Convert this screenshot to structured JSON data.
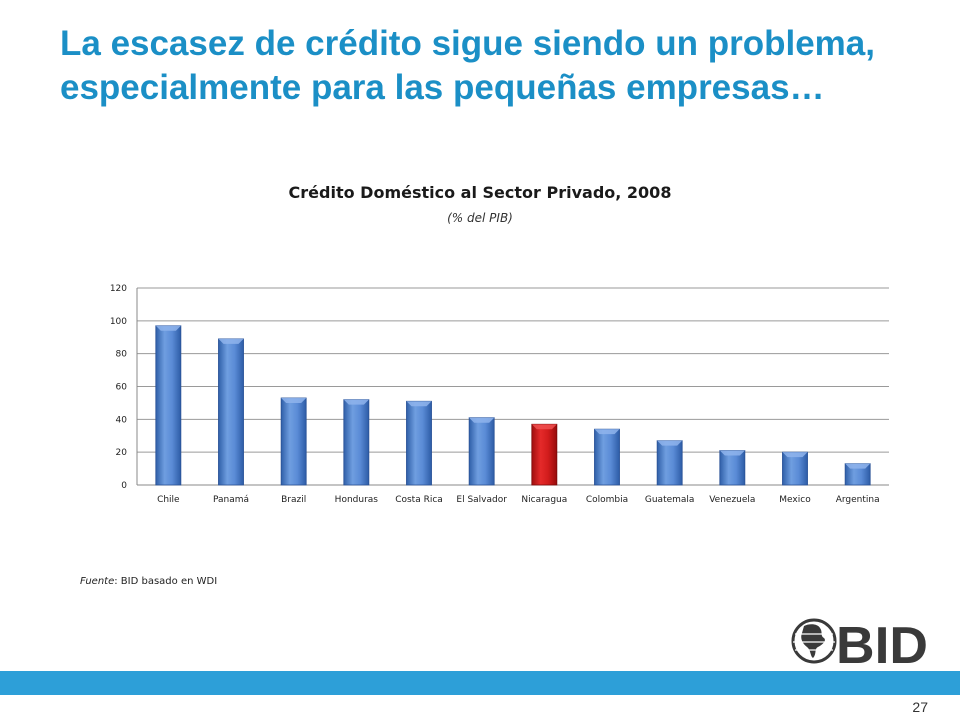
{
  "slide": {
    "title": "La escasez de crédito sigue siendo un problema, especialmente para las pequeñas empresas…",
    "source_label": "Fuente",
    "source_text": ": BID basado en WDI",
    "logo_text": "BID",
    "page_number": "27"
  },
  "colors": {
    "title": "#1b8fc6",
    "bar": "#4a7fcf",
    "highlight_bar": "#d01818",
    "bottom_bar": "#2d9fd8",
    "logo": "#3a3a3a"
  },
  "chart_data": {
    "type": "bar",
    "title": "Crédito Doméstico al Sector Privado, 2008",
    "subtitle": "(% del PIB)",
    "categories": [
      "Chile",
      "Panamá",
      "Brazil",
      "Honduras",
      "Costa Rica",
      "El Salvador",
      "Nicaragua",
      "Colombia",
      "Guatemala",
      "Venezuela",
      "Mexico",
      "Argentina"
    ],
    "values": [
      97,
      89,
      53,
      52,
      51,
      41,
      37,
      34,
      27,
      21,
      20,
      13
    ],
    "highlight": "Nicaragua",
    "xlabel": "",
    "ylabel": "",
    "ylim": [
      0,
      120
    ],
    "yticks": [
      0,
      20,
      40,
      60,
      80,
      100,
      120
    ],
    "grid": true,
    "legend": "none"
  }
}
